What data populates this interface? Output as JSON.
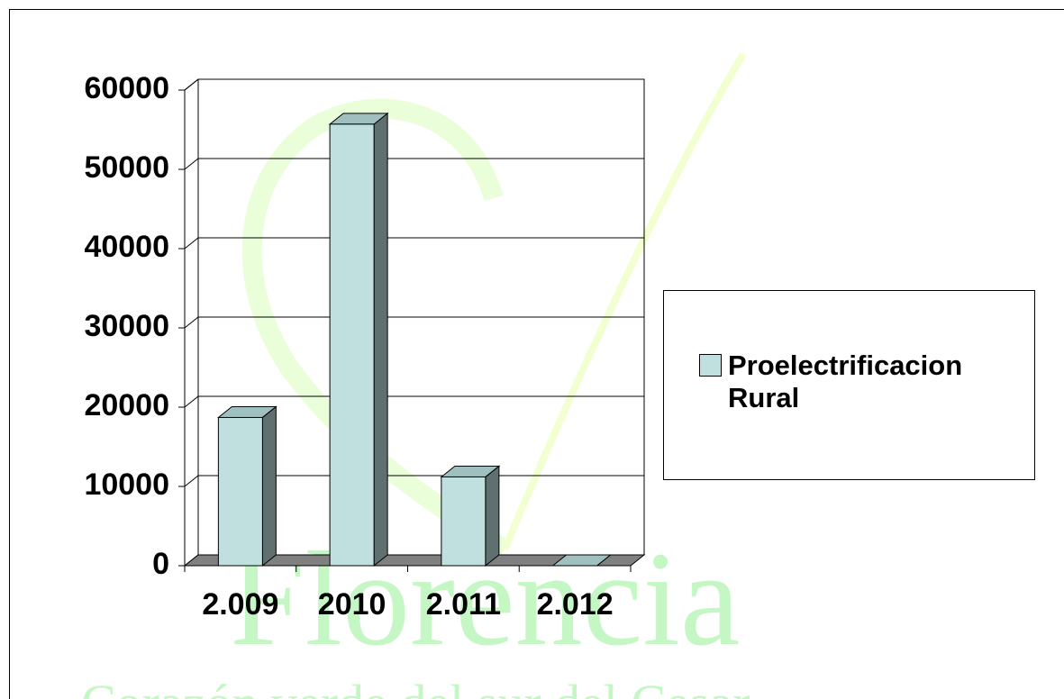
{
  "chart_data": {
    "type": "bar3d",
    "categories": [
      "2.009",
      "2010",
      "2.011",
      "2.012"
    ],
    "series": [
      {
        "name": "Proelectrificacion Rural",
        "color": "#c0e0e0",
        "values": [
          18700,
          55700,
          11200,
          0
        ]
      }
    ],
    "ylim": [
      0,
      60000
    ],
    "yticks": [
      0,
      10000,
      20000,
      30000,
      40000,
      50000,
      60000
    ],
    "grid": true,
    "legend": "right",
    "watermark": [
      "Florencia",
      "Corazón verde del sur del Cesar"
    ]
  }
}
